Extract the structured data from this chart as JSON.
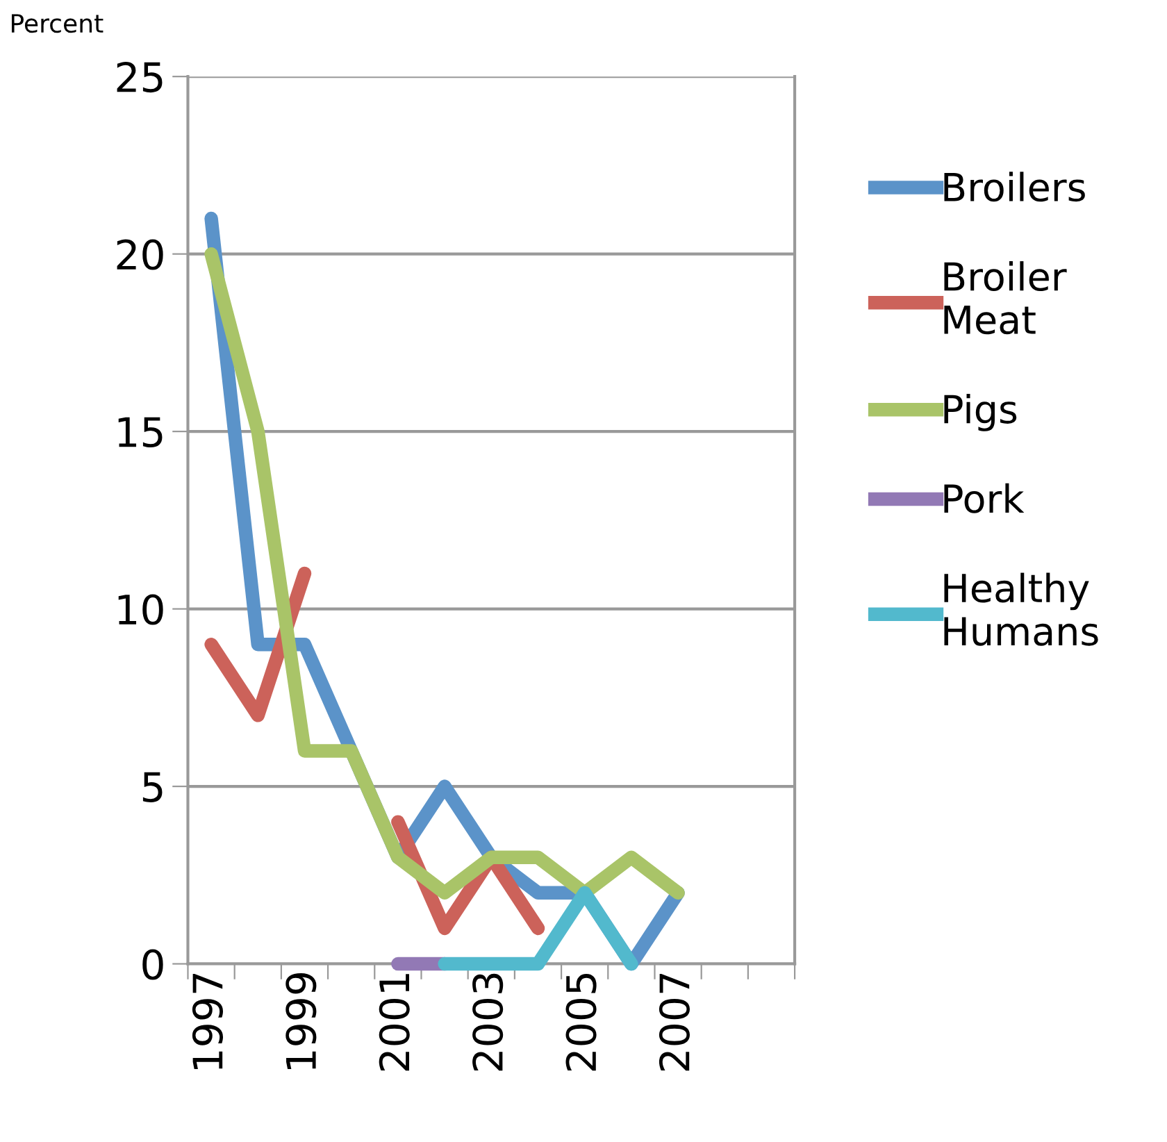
{
  "chart_data": {
    "type": "line",
    "ylabel": "Percent",
    "categories": [
      "1997",
      null,
      "1999",
      null,
      "2001",
      null,
      "2003",
      null,
      "2005",
      null,
      "2007",
      null,
      null
    ],
    "series": [
      {
        "name": "Broilers",
        "color": "#5b93c9",
        "values": [
          21,
          9,
          9,
          6,
          3,
          5,
          3,
          2,
          2,
          0,
          2,
          null,
          null
        ]
      },
      {
        "name": "Broiler Meat",
        "color": "#cc625a",
        "values": [
          9,
          7,
          11,
          null,
          4,
          1,
          3,
          1,
          null,
          null,
          null,
          null,
          null
        ]
      },
      {
        "name": "Pigs",
        "color": "#a9c468",
        "values": [
          20,
          15,
          6,
          6,
          3,
          2,
          3,
          3,
          2,
          3,
          2,
          null,
          null
        ]
      },
      {
        "name": "Pork",
        "color": "#9279b5",
        "values": [
          null,
          null,
          null,
          null,
          0,
          0,
          null,
          null,
          null,
          null,
          null,
          null,
          null
        ]
      },
      {
        "name": "Healthy Humans",
        "color": "#52b9cd",
        "values": [
          null,
          null,
          null,
          null,
          null,
          0,
          0,
          0,
          2,
          0,
          null,
          null,
          null
        ]
      }
    ],
    "ylim": [
      0,
      25
    ],
    "yticks": [
      0,
      5,
      10,
      15,
      20,
      25
    ],
    "grid": "y",
    "legend": "right",
    "marker": "none",
    "line_style": "solid"
  }
}
